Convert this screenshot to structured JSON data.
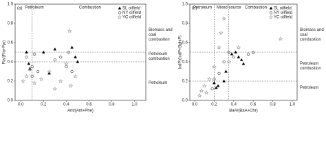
{
  "chart_data": [
    {
      "type": "scatter",
      "panel_label": "(a)",
      "x_label": "Ant/(Ant+Phe)",
      "y_label": "Fla/(Fla+Pyr)",
      "xlim": [
        -0.05,
        1.1
      ],
      "ylim": [
        0,
        1.0
      ],
      "xticks": [
        {
          "value": 0,
          "label": "0.0"
        },
        {
          "value": 0.2,
          "label": "0.2"
        },
        {
          "value": 0.4,
          "label": "0.4"
        },
        {
          "value": 0.6,
          "label": "0.6"
        },
        {
          "value": 0.8,
          "label": "0.8"
        },
        {
          "value": 1.0,
          "label": "1.0"
        }
      ],
      "yticks": [
        {
          "value": 0,
          "label": "0.0"
        },
        {
          "value": 0.2,
          "label": "0.2"
        },
        {
          "value": 0.4,
          "label": "0.4"
        },
        {
          "value": 0.6,
          "label": "0.6"
        },
        {
          "value": 0.8,
          "label": "0.8"
        },
        {
          "value": 1.0,
          "label": "1.0"
        }
      ],
      "vlines": [
        0.1
      ],
      "hlines": [
        0.4,
        0.5
      ],
      "top_labels": [
        {
          "text": "Petroleum",
          "x": 0.0
        },
        {
          "text": "Combustion",
          "x": 0.5
        }
      ],
      "right_labels": [
        {
          "text": "Biomass and coal combustion",
          "y": 0.7
        },
        {
          "text": "Petroleum combustion",
          "y": 0.45
        },
        {
          "text": "Petroleum",
          "y": 0.15
        }
      ],
      "series": [
        {
          "name": "SL oilfield",
          "color": "#000000",
          "marker": "triangle",
          "x": [
            0.05,
            0.07,
            0.08,
            0.2,
            0.25,
            0.3,
            0.45,
            0.48,
            0.5
          ],
          "values": [
            0.5,
            0.38,
            0.33,
            0.5,
            0.28,
            0.53,
            0.55,
            0.45,
            0.4
          ]
        },
        {
          "name": "NY oilfield",
          "color": "#666666",
          "marker": "circle",
          "x": [
            0.05,
            0.08,
            0.1,
            0.1,
            0.12,
            0.15,
            0.3,
            0.35,
            0.4,
            0.42,
            0.45
          ],
          "values": [
            0.45,
            0.32,
            0.35,
            0.25,
            0.48,
            0.3,
            0.42,
            0.45,
            0.35,
            0.5,
            0.3
          ]
        },
        {
          "name": "YC oilfield",
          "color": "#999999",
          "marker": "star",
          "x": [
            0.02,
            0.05,
            0.12,
            0.18,
            0.25,
            0.3,
            0.35,
            0.43,
            0.44,
            0.4,
            0.48
          ],
          "values": [
            0.2,
            0.25,
            0.18,
            0.22,
            0.3,
            0.12,
            0.2,
            0.72,
            0.15,
            0.38,
            0.25
          ]
        }
      ]
    },
    {
      "type": "scatter",
      "panel_label": "(b)",
      "x_label": "BaA/(BaA+Chr)",
      "y_label": "IcdP/(IcdP+BghiP)",
      "xlim": [
        -0.05,
        1.05
      ],
      "ylim": [
        0,
        1.0
      ],
      "xticks": [
        {
          "value": 0,
          "label": "0.0"
        },
        {
          "value": 0.2,
          "label": "0.2"
        },
        {
          "value": 0.4,
          "label": "0.4"
        },
        {
          "value": 0.6,
          "label": "0.6"
        },
        {
          "value": 0.8,
          "label": "0.8"
        },
        {
          "value": 1.0,
          "label": "1.0"
        }
      ],
      "yticks": [
        {
          "value": 0,
          "label": "0.0"
        },
        {
          "value": 0.2,
          "label": "0.2"
        },
        {
          "value": 0.4,
          "label": "0.4"
        },
        {
          "value": 0.6,
          "label": "0.6"
        },
        {
          "value": 0.8,
          "label": "0.8"
        },
        {
          "value": 1.0,
          "label": "1.0"
        }
      ],
      "vlines": [
        0.2,
        0.35
      ],
      "hlines": [
        0.2,
        0.5
      ],
      "top_labels": [
        {
          "text": "Petroleum",
          "x": -0.03
        },
        {
          "text": "Mixed source",
          "x": 0.21
        },
        {
          "text": "Combustion",
          "x": 0.5
        }
      ],
      "right_labels": [
        {
          "text": "Biomass and coal combustion",
          "y": 0.7
        },
        {
          "text": "Petroleum combustion",
          "y": 0.35
        },
        {
          "text": "Petroleum",
          "y": 0.1
        }
      ],
      "series": [
        {
          "name": "SL oilfield",
          "color": "#000000",
          "marker": "triangle",
          "x": [
            0.2,
            0.22,
            0.24,
            0.3,
            0.32,
            0.38,
            0.42,
            0.45,
            0.48,
            0.5
          ],
          "values": [
            0.18,
            0.13,
            0.15,
            0.2,
            0.3,
            0.48,
            0.5,
            0.45,
            0.42,
            0.38
          ]
        },
        {
          "name": "NY oilfield",
          "color": "#666666",
          "marker": "circle",
          "x": [
            0.18,
            0.2,
            0.25,
            0.3,
            0.35,
            0.4,
            0.55,
            0.6
          ],
          "values": [
            0.12,
            0.22,
            0.28,
            0.4,
            0.5,
            0.45,
            0.48,
            0.5
          ]
        },
        {
          "name": "YC oilfield",
          "color": "#999999",
          "marker": "star",
          "x": [
            0.05,
            0.07,
            0.1,
            0.12,
            0.15,
            0.2,
            0.25,
            0.27,
            0.3,
            0.35,
            0.45,
            0.88
          ],
          "values": [
            0.05,
            0.1,
            0.15,
            0.08,
            0.22,
            0.35,
            0.55,
            0.7,
            0.85,
            0.4,
            0.55,
            0.64
          ]
        }
      ]
    }
  ]
}
